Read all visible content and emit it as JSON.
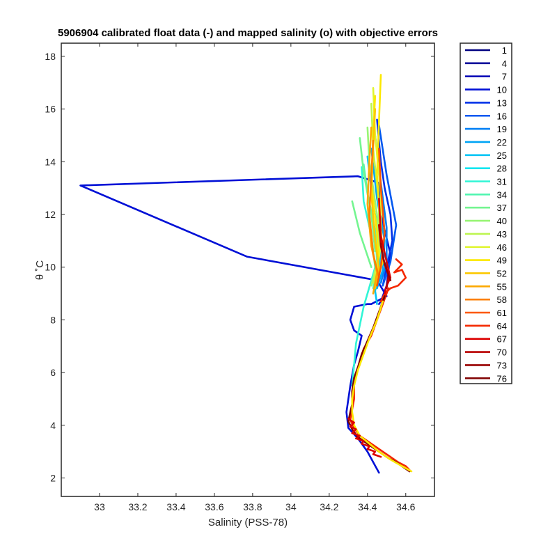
{
  "chart_data": {
    "type": "line",
    "title": "5906904 calibrated float data (-) and mapped salinity (o) with objective errors",
    "xlabel": "Salinity (PSS-78)",
    "ylabel": "θ ˚C",
    "xlim": [
      32.8,
      34.75
    ],
    "ylim": [
      1.3,
      18.5
    ],
    "xticks": [
      33,
      33.2,
      33.4,
      33.6,
      33.8,
      34,
      34.2,
      34.4,
      34.6
    ],
    "xtick_labels": [
      "33",
      "33.2",
      "33.4",
      "33.6",
      "33.8",
      "34",
      "34.2",
      "34.4",
      "34.6"
    ],
    "yticks": [
      2,
      4,
      6,
      8,
      10,
      12,
      14,
      16,
      18
    ],
    "ytick_labels": [
      "2",
      "4",
      "6",
      "8",
      "10",
      "12",
      "14",
      "16",
      "18"
    ],
    "grid": false,
    "legend_position": "outside-right",
    "legend": [
      {
        "label": "1",
        "color": "#000080"
      },
      {
        "label": "4",
        "color": "#00009a"
      },
      {
        "label": "7",
        "color": "#0000b8"
      },
      {
        "label": "10",
        "color": "#0010d6"
      },
      {
        "label": "13",
        "color": "#0030e8"
      },
      {
        "label": "16",
        "color": "#0058f0"
      },
      {
        "label": "19",
        "color": "#0080f5"
      },
      {
        "label": "22",
        "color": "#00a4f5"
      },
      {
        "label": "25",
        "color": "#00c4f5"
      },
      {
        "label": "28",
        "color": "#10e6f0"
      },
      {
        "label": "31",
        "color": "#30f5d6"
      },
      {
        "label": "34",
        "color": "#50f5b0"
      },
      {
        "label": "37",
        "color": "#74f590"
      },
      {
        "label": "40",
        "color": "#98f574"
      },
      {
        "label": "43",
        "color": "#bcf550"
      },
      {
        "label": "46",
        "color": "#e0f530"
      },
      {
        "label": "49",
        "color": "#fce800"
      },
      {
        "label": "52",
        "color": "#fcc800"
      },
      {
        "label": "55",
        "color": "#fca800"
      },
      {
        "label": "58",
        "color": "#fc8000"
      },
      {
        "label": "61",
        "color": "#fc5800"
      },
      {
        "label": "64",
        "color": "#f42800"
      },
      {
        "label": "67",
        "color": "#dc0000"
      },
      {
        "label": "70",
        "color": "#b80000"
      },
      {
        "label": "73",
        "color": "#980000"
      },
      {
        "label": "76",
        "color": "#800000"
      }
    ],
    "series": [
      {
        "color": "#0010d6",
        "x": [
          34.46,
          34.43,
          34.4,
          34.35,
          34.3,
          34.29,
          34.31,
          34.33,
          34.35,
          34.37,
          34.33,
          34.31,
          34.33,
          34.4,
          34.42,
          34.5,
          34.45,
          33.77,
          32.9,
          34.35,
          34.46,
          34.47,
          34.52,
          34.5,
          34.48,
          34.47,
          34.46
        ],
        "y": [
          2.2,
          2.6,
          3.0,
          3.5,
          3.9,
          4.5,
          5.5,
          6.3,
          6.8,
          7.4,
          7.6,
          8.0,
          8.5,
          8.6,
          8.6,
          8.9,
          9.5,
          10.4,
          13.1,
          13.45,
          13.2,
          12.0,
          10.5,
          9.3,
          8.9,
          8.7,
          8.6
        ]
      },
      {
        "color": "#0030e8",
        "x": [
          34.45,
          34.47,
          34.49,
          34.52,
          34.53,
          34.5,
          34.48
        ],
        "y": [
          15.6,
          14.0,
          13.0,
          12.0,
          11.0,
          10.0,
          9.3
        ]
      },
      {
        "color": "#0058f0",
        "x": [
          34.46,
          34.5,
          34.55,
          34.52,
          34.48
        ],
        "y": [
          15.4,
          13.5,
          11.6,
          10.2,
          9.3
        ]
      },
      {
        "color": "#0080f5",
        "x": [
          34.44,
          34.47,
          34.5,
          34.5,
          34.47
        ],
        "y": [
          15.0,
          13.2,
          11.5,
          10.2,
          9.4
        ]
      },
      {
        "color": "#00a4f5",
        "x": [
          34.42,
          34.45,
          34.49,
          34.48,
          34.45
        ],
        "y": [
          14.5,
          12.6,
          11.0,
          9.9,
          9.2
        ]
      },
      {
        "color": "#00c4f5",
        "x": [
          34.4,
          34.43,
          34.47,
          34.46,
          34.44,
          34.45
        ],
        "y": [
          14.2,
          12.4,
          10.8,
          9.8,
          9.1,
          8.6
        ]
      },
      {
        "color": "#30f5d6",
        "x": [
          34.37,
          34.38,
          34.42,
          34.44,
          34.4,
          34.38,
          34.36,
          34.34,
          34.33,
          34.32
        ],
        "y": [
          13.8,
          12.5,
          11.2,
          10.0,
          9.0,
          8.5,
          7.8,
          7.1,
          6.3,
          5.5
        ]
      },
      {
        "color": "#50f5b0",
        "x": [
          34.38,
          34.4,
          34.44,
          34.45,
          34.43
        ],
        "y": [
          13.9,
          12.8,
          11.4,
          10.2,
          9.2
        ]
      },
      {
        "color": "#74f590",
        "x": [
          34.36,
          34.38,
          34.42,
          34.44
        ],
        "y": [
          14.9,
          13.6,
          12.0,
          10.6
        ]
      },
      {
        "color": "#74f590",
        "x": [
          34.32,
          34.36,
          34.42
        ],
        "y": [
          12.5,
          11.3,
          10.0
        ]
      },
      {
        "color": "#98f574",
        "x": [
          34.4,
          34.41,
          34.45,
          34.46,
          34.42
        ],
        "y": [
          15.3,
          14.0,
          12.0,
          10.5,
          9.3
        ]
      },
      {
        "color": "#bcf550",
        "x": [
          34.42,
          34.43,
          34.46,
          34.46,
          34.43
        ],
        "y": [
          16.2,
          14.5,
          12.4,
          10.6,
          9.4
        ]
      },
      {
        "color": "#e0f530",
        "x": [
          34.43,
          34.44,
          34.47,
          34.47,
          34.44
        ],
        "y": [
          16.8,
          15.0,
          12.8,
          10.8,
          9.5
        ]
      },
      {
        "color": "#fce800",
        "x": [
          34.47,
          34.46,
          34.45,
          34.47,
          34.48,
          34.44
        ],
        "y": [
          17.3,
          15.5,
          13.5,
          11.5,
          10.2,
          9.3
        ]
      },
      {
        "color": "#fce800",
        "x": [
          34.44,
          34.43,
          34.42,
          34.45,
          34.46
        ],
        "y": [
          16.5,
          15.0,
          13.2,
          11.3,
          9.8
        ]
      },
      {
        "color": "#fcc800",
        "x": [
          34.44,
          34.43,
          34.42,
          34.44,
          34.46,
          34.44
        ],
        "y": [
          16.0,
          14.5,
          12.8,
          11.0,
          10.0,
          9.2
        ]
      },
      {
        "color": "#fca800",
        "x": [
          34.42,
          34.41,
          34.4,
          34.42,
          34.45,
          34.43
        ],
        "y": [
          15.3,
          14.0,
          12.4,
          10.8,
          9.8,
          9.0
        ]
      },
      {
        "color": "#fc8000",
        "x": [
          34.43,
          34.42,
          34.41,
          34.43,
          34.46
        ],
        "y": [
          14.8,
          13.5,
          12.0,
          10.5,
          9.6
        ]
      },
      {
        "color": "#fc5800",
        "x": [
          34.46,
          34.47,
          34.49,
          34.47,
          34.45
        ],
        "y": [
          14.5,
          13.0,
          11.3,
          10.0,
          9.3
        ]
      },
      {
        "color": "#f42800",
        "x": [
          34.55,
          34.58,
          34.54,
          34.58,
          34.6,
          34.56,
          34.52,
          34.49,
          34.47
        ],
        "y": [
          10.3,
          10.1,
          9.8,
          9.9,
          9.6,
          9.3,
          9.2,
          9.0,
          8.7
        ]
      },
      {
        "color": "#dc0000",
        "x": [
          34.46,
          34.47,
          34.5,
          34.52,
          34.5,
          34.49
        ],
        "y": [
          12.6,
          11.2,
          10.2,
          9.6,
          9.3,
          9.0
        ]
      },
      {
        "color": "#b80000",
        "x": [
          34.46,
          34.47,
          34.49,
          34.51,
          34.5
        ],
        "y": [
          11.6,
          10.8,
          10.1,
          9.7,
          9.2
        ]
      },
      {
        "color": "#980000",
        "x": [
          34.47,
          34.48,
          34.5,
          34.52
        ],
        "y": [
          10.9,
          10.4,
          9.9,
          9.5
        ]
      },
      {
        "color": "#f42800",
        "x": [
          34.51,
          34.48,
          34.45,
          34.42,
          34.38,
          34.36,
          34.34,
          34.33,
          34.33,
          34.32,
          34.31,
          34.33,
          34.36,
          34.4,
          34.44,
          34.48,
          34.52,
          34.56,
          34.6,
          34.62
        ],
        "y": [
          9.2,
          8.6,
          8.0,
          7.4,
          6.9,
          6.4,
          6.0,
          5.5,
          5.0,
          4.6,
          4.2,
          3.9,
          3.6,
          3.4,
          3.2,
          3.0,
          2.8,
          2.6,
          2.45,
          2.3
        ]
      },
      {
        "color": "#800000",
        "x": [
          34.49,
          34.46,
          34.43,
          34.4,
          34.37,
          34.35,
          34.33,
          34.32,
          34.32,
          34.31,
          34.3,
          34.32,
          34.35,
          34.39,
          34.43,
          34.47,
          34.51,
          34.55,
          34.59,
          34.62
        ],
        "y": [
          8.9,
          8.3,
          7.7,
          7.2,
          6.7,
          6.2,
          5.8,
          5.3,
          4.8,
          4.5,
          4.15,
          3.85,
          3.55,
          3.35,
          3.15,
          2.95,
          2.75,
          2.6,
          2.4,
          2.25
        ]
      },
      {
        "color": "#fce800",
        "x": [
          34.48,
          34.45,
          34.41,
          34.38,
          34.35,
          34.33,
          34.32,
          34.32,
          34.33,
          34.36,
          34.41,
          34.46,
          34.52,
          34.58,
          34.63
        ],
        "y": [
          8.7,
          8.0,
          7.3,
          6.7,
          6.1,
          5.5,
          5.0,
          4.5,
          4.0,
          3.6,
          3.3,
          3.0,
          2.7,
          2.45,
          2.25
        ]
      },
      {
        "color": "#dc0000",
        "x": [
          34.3,
          34.33,
          34.31,
          34.34,
          34.32,
          34.36,
          34.34,
          34.38,
          34.37,
          34.41,
          34.4,
          34.44,
          34.43,
          34.47
        ],
        "y": [
          4.25,
          4.1,
          3.95,
          3.85,
          3.7,
          3.6,
          3.5,
          3.4,
          3.3,
          3.2,
          3.1,
          3.0,
          2.9,
          2.8
        ]
      }
    ]
  }
}
